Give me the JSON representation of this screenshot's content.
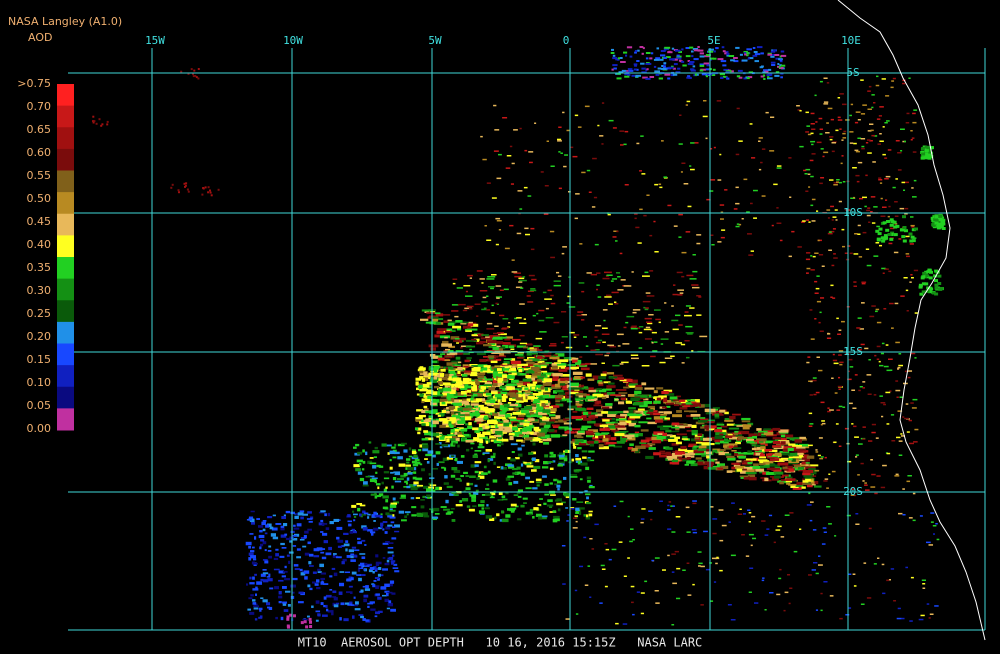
{
  "header": {
    "source": "NASA Langley (A1.0)",
    "unit": "AOD"
  },
  "legend": [
    {
      "label": ">0.75",
      "color": "#ff2020"
    },
    {
      "label": "0.70",
      "color": "#c81818"
    },
    {
      "label": "0.65",
      "color": "#a01010"
    },
    {
      "label": "0.60",
      "color": "#7a0c0c"
    },
    {
      "label": "0.55",
      "color": "#80601a"
    },
    {
      "label": "0.50",
      "color": "#b88a22"
    },
    {
      "label": "0.45",
      "color": "#e8b85a"
    },
    {
      "label": "0.40",
      "color": "#ffff20"
    },
    {
      "label": "0.35",
      "color": "#22d022"
    },
    {
      "label": "0.30",
      "color": "#149014"
    },
    {
      "label": "0.25",
      "color": "#0a5a0a"
    },
    {
      "label": "0.20",
      "color": "#2090e8"
    },
    {
      "label": "0.15",
      "color": "#1848ff"
    },
    {
      "label": "0.10",
      "color": "#1020c0"
    },
    {
      "label": "0.05",
      "color": "#0a0a80"
    },
    {
      "label": "0.00",
      "color": "#c030a0"
    }
  ],
  "longitudes": [
    "15W",
    "10W",
    "5W",
    "0",
    "5E",
    "10E"
  ],
  "latitudes": [
    "5S",
    "10S",
    "15S",
    "20S"
  ],
  "footer": "MT10  AEROSOL OPT DEPTH   10 16, 2016 15:15Z   NASA LARC"
}
